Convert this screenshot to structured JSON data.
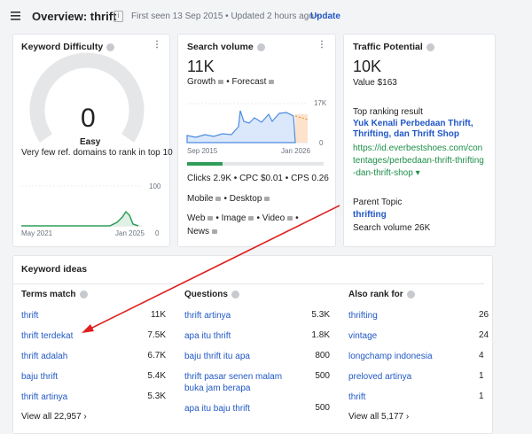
{
  "header": {
    "title": "Overview: thrift",
    "info": "First seen 13 Sep 2015 • Updated 2 hours ago •",
    "update": "Update"
  },
  "difficulty": {
    "title": "Keyword Difficulty",
    "score": "0",
    "level": "Easy",
    "note": "Very few ref. domains to rank in top 10",
    "y_max": "100",
    "y_min": "0",
    "x_start": "May 2021",
    "x_end": "Jan 2025"
  },
  "volume": {
    "title": "Search volume",
    "value": "11K",
    "growth": "Growth",
    "forecast": "Forecast",
    "y_max": "17K",
    "y_min": "0",
    "x_start": "Sep 2015",
    "x_end": "Jan 2026",
    "clicks": "Clicks 2.9K",
    "cpc": "CPC $0.01",
    "cps": "CPS 0.26",
    "mobile": "Mobile",
    "desktop": "Desktop",
    "web": "Web",
    "image": "Image",
    "video": "Video",
    "news": "News"
  },
  "traffic": {
    "title": "Traffic Potential",
    "value": "10K",
    "worth": "Value $163",
    "top_label": "Top ranking result",
    "top_title": "Yuk Kenali Perbedaan Thrift, Thrifting, dan Thrift Shop",
    "top_url": "https://id.everbestshoes.com/contentages/perbedaan-thrift-thrifting-dan-thrift-shop ▾",
    "parent_label": "Parent Topic",
    "parent": "thrifting",
    "parent_volume": "Search volume 26K"
  },
  "ideas": {
    "title": "Keyword ideas",
    "columns": [
      {
        "title": "Terms match",
        "rows": [
          [
            "thrift",
            "11K"
          ],
          [
            "thrift terdekat",
            "7.5K"
          ],
          [
            "thrift adalah",
            "6.7K"
          ],
          [
            "baju thrift",
            "5.4K"
          ],
          [
            "thrift artinya",
            "5.3K"
          ]
        ],
        "view_all": "View all 22,957"
      },
      {
        "title": "Questions",
        "rows": [
          [
            "thrift artinya",
            "5.3K"
          ],
          [
            "apa itu thrift",
            "1.8K"
          ],
          [
            "baju thrift itu apa",
            "800"
          ],
          [
            "thrift pasar senen malam buka jam berapa",
            "500"
          ],
          [
            "apa itu baju thrift",
            "500"
          ]
        ]
      },
      {
        "title": "Also rank for",
        "rows": [
          [
            "thrifting",
            "26"
          ],
          [
            "vintage",
            "24"
          ],
          [
            "longchamp indonesia",
            "4"
          ],
          [
            "preloved artinya",
            "1"
          ],
          [
            "thrift",
            "1"
          ]
        ],
        "view_all": "View all 5,177"
      }
    ]
  }
}
